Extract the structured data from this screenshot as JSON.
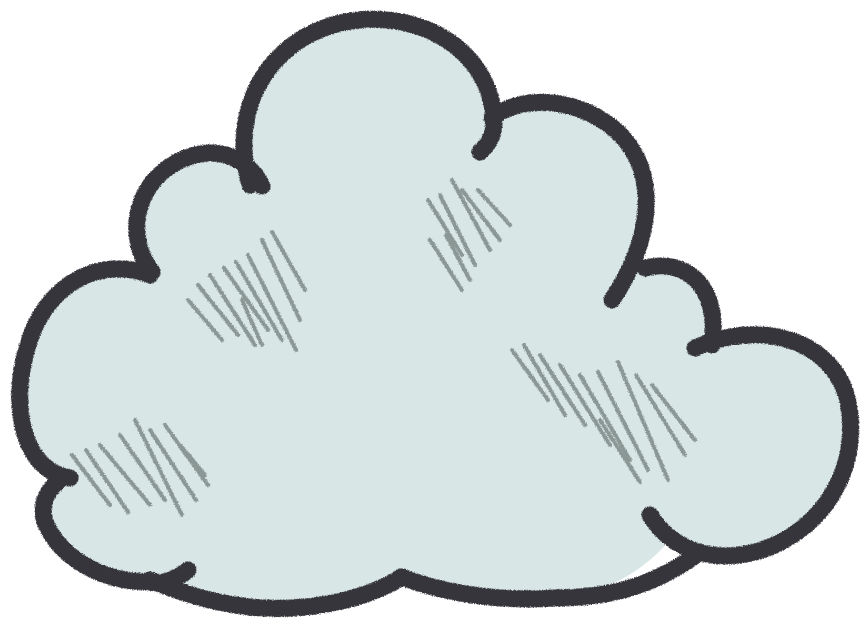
{
  "illustration": {
    "subject": "cloud-icon",
    "colors": {
      "fill": "#d8e6e6",
      "outline": "#34363b",
      "shading": "#7d8a88"
    }
  }
}
